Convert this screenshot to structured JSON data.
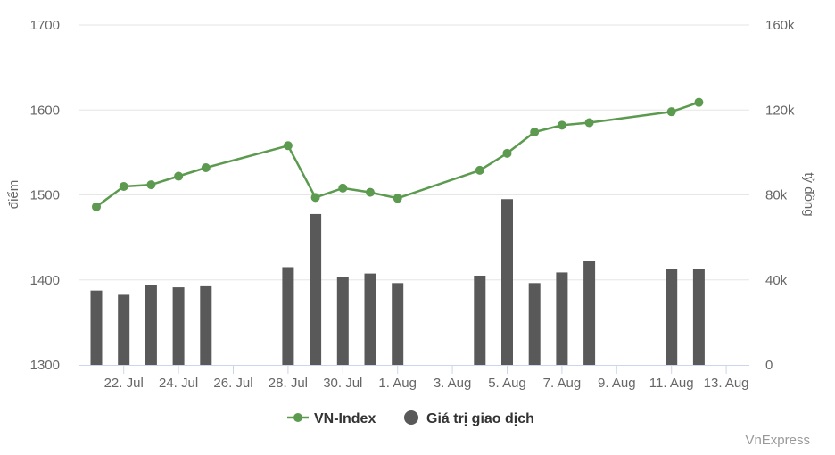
{
  "chart_data": {
    "type": "bar+line",
    "y_left": {
      "label": "điểm",
      "ticks": [
        "1300",
        "1400",
        "1500",
        "1600",
        "1700"
      ],
      "range": [
        1300,
        1700
      ]
    },
    "y_right": {
      "label": "tỷ đồng",
      "ticks": [
        "0",
        "40k",
        "80k",
        "120k",
        "160k"
      ],
      "range": [
        0,
        160000
      ]
    },
    "x_ticks": [
      "22. Jul",
      "24. Jul",
      "26. Jul",
      "28. Jul",
      "30. Jul",
      "1. Aug",
      "3. Aug",
      "5. Aug",
      "7. Aug",
      "9. Aug",
      "11. Aug",
      "13. Aug"
    ],
    "x_tick_day_index": [
      1,
      3,
      5,
      7,
      9,
      11,
      13,
      15,
      17,
      19,
      21,
      23
    ],
    "dates": [
      "21/07",
      "22/07",
      "23/07",
      "24/07",
      "25/07",
      "28/07",
      "29/07",
      "30/07",
      "31/07",
      "01/08",
      "04/08",
      "05/08",
      "06/08",
      "07/08",
      "08/08",
      "11/08",
      "12/08"
    ],
    "day_index": [
      0,
      1,
      2,
      3,
      4,
      7,
      8,
      9,
      10,
      11,
      14,
      15,
      16,
      17,
      18,
      21,
      22
    ],
    "series": [
      {
        "name": "VN-Index",
        "type": "line",
        "color": "#5b9a4f",
        "values": [
          1486,
          1510,
          1512,
          1522,
          1532,
          1558,
          1497,
          1508,
          1503,
          1496,
          1529,
          1549,
          1574,
          1582,
          1585,
          1598,
          1609
        ]
      },
      {
        "name": "Giá trị giao dịch",
        "type": "bar",
        "color": "#595959",
        "values": [
          35000,
          33000,
          37500,
          36500,
          37000,
          46000,
          71000,
          41500,
          43000,
          38500,
          42000,
          78000,
          38500,
          43500,
          49000,
          45000,
          45000
        ]
      }
    ],
    "legend": {
      "position": "bottom-center"
    },
    "grid": true
  },
  "credit": "VnExpress"
}
